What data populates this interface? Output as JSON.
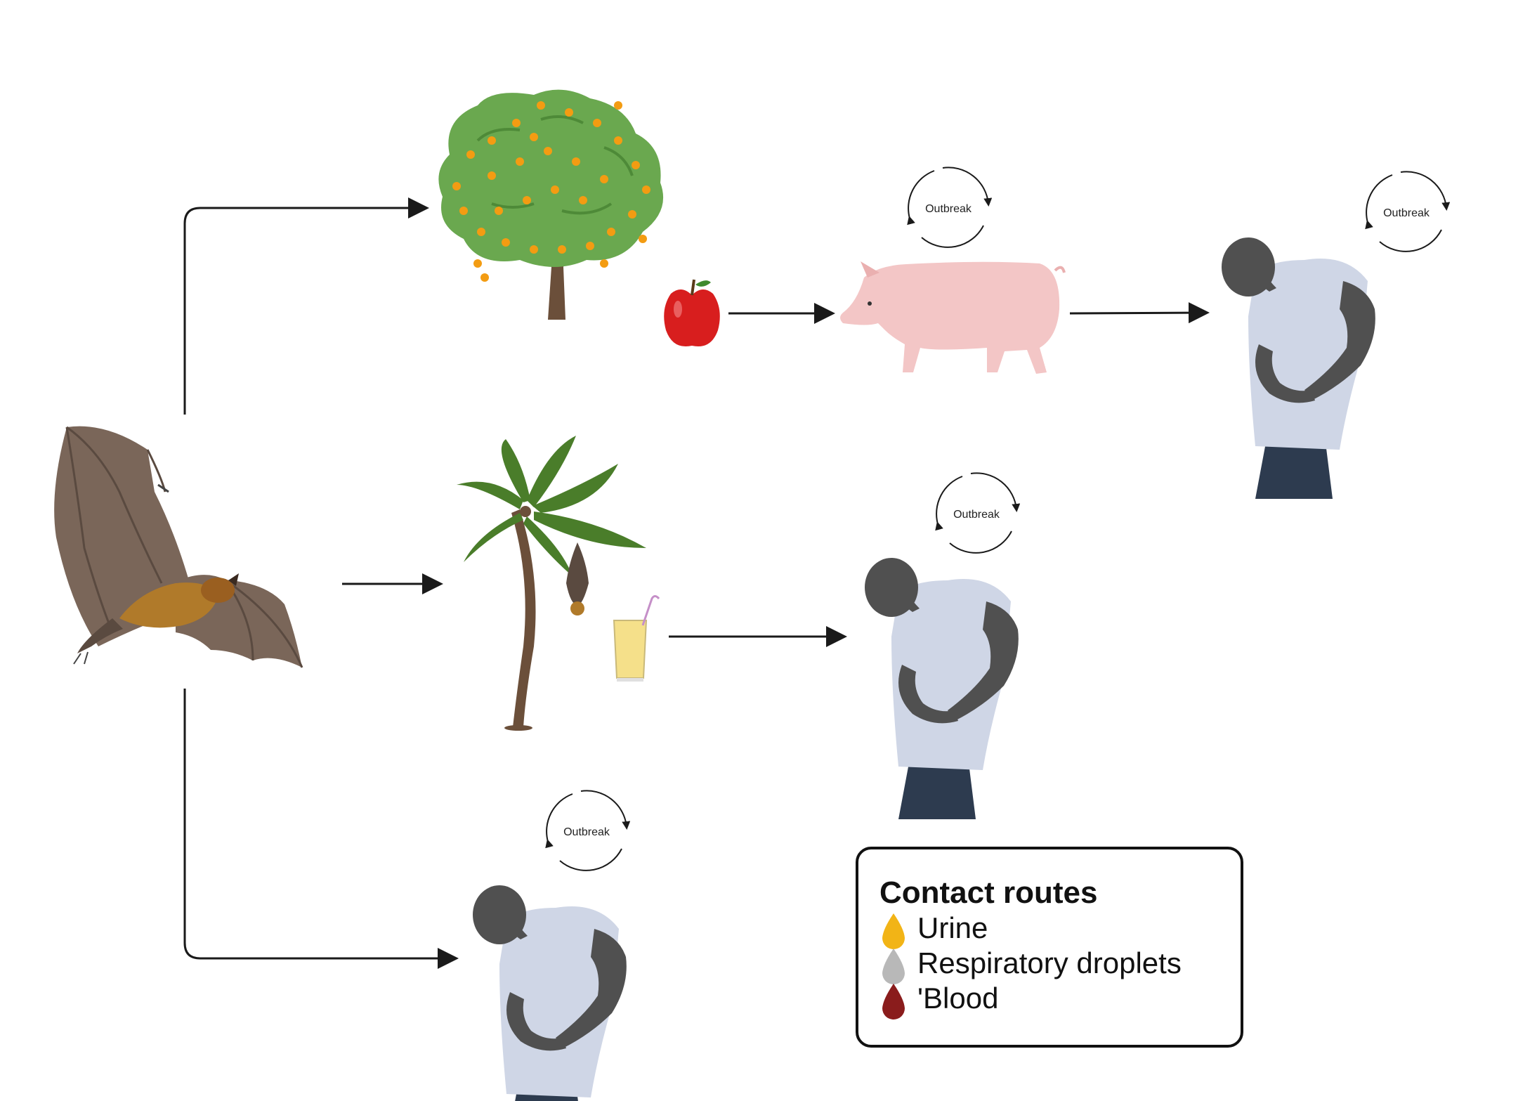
{
  "colors": {
    "arrow": "#1a1a1a",
    "urine": "#f2b416",
    "respiratory": "#b8b8b8",
    "blood": "#8a1c1c",
    "shirt": "#cfd6e6",
    "skin": "#505050",
    "pants": "#2d3b4f",
    "pig": "#f3c6c6",
    "tree_leaf": "#6aa84f",
    "fruit": "#f39c12",
    "palm_leaf": "#4a7d2a",
    "trunk": "#6b4f3a",
    "bat_wing": "#7a6659",
    "bat_fur": "#b07a2a",
    "apple": "#d81e1e",
    "juice": "#f5e08a"
  },
  "icons": {
    "reservoir": "fruit-bat-icon",
    "fruit_tree": "fruit-tree-icon",
    "apple": "apple-icon",
    "pig": "pig-icon",
    "palm": "palm-tree-icon",
    "juice": "juice-glass-icon",
    "person": "sick-person-icon",
    "outbreak": "cycle-arrows-icon",
    "drop": "droplet-icon"
  },
  "outbreak_label": "Outbreak",
  "legend": {
    "title": "Contact routes",
    "items": [
      {
        "label": "Urine",
        "color_key": "urine"
      },
      {
        "label": "Respiratory droplets",
        "color_key": "respiratory"
      },
      {
        "label": "'Blood",
        "color_key": "blood"
      }
    ]
  }
}
